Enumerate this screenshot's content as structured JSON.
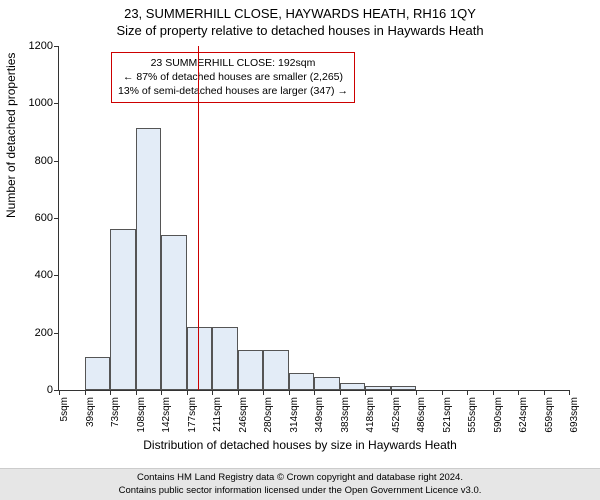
{
  "title_main": "23, SUMMERHILL CLOSE, HAYWARDS HEATH, RH16 1QY",
  "title_sub": "Size of property relative to detached houses in Haywards Heath",
  "ylabel": "Number of detached properties",
  "xlabel": "Distribution of detached houses by size in Haywards Heath",
  "chart": {
    "type": "histogram",
    "ymax": 1200,
    "yticks": [
      0,
      200,
      400,
      600,
      800,
      1000,
      1200
    ],
    "xticks": [
      "5sqm",
      "39sqm",
      "73sqm",
      "108sqm",
      "142sqm",
      "177sqm",
      "211sqm",
      "246sqm",
      "280sqm",
      "314sqm",
      "349sqm",
      "383sqm",
      "418sqm",
      "452sqm",
      "486sqm",
      "521sqm",
      "555sqm",
      "590sqm",
      "624sqm",
      "659sqm",
      "693sqm"
    ],
    "bars": [
      0,
      115,
      560,
      915,
      540,
      220,
      220,
      140,
      140,
      60,
      45,
      25,
      15,
      15,
      0,
      0,
      0,
      0,
      0,
      0
    ],
    "bar_fill": "#e3ecf7",
    "bar_border": "#555555",
    "plot_bg": "#ffffff",
    "axis_color": "#333333"
  },
  "reference_line": {
    "position_sqm": 192,
    "color": "#cc0000"
  },
  "info_box": {
    "line1": "23 SUMMERHILL CLOSE: 192sqm",
    "line2": "← 87% of detached houses are smaller (2,265)",
    "line3": "13% of semi-detached houses are larger (347) →",
    "border_color": "#cc0000"
  },
  "footer": {
    "line1": "Contains HM Land Registry data © Crown copyright and database right 2024.",
    "line2": "Contains public sector information licensed under the Open Government Licence v3.0."
  }
}
